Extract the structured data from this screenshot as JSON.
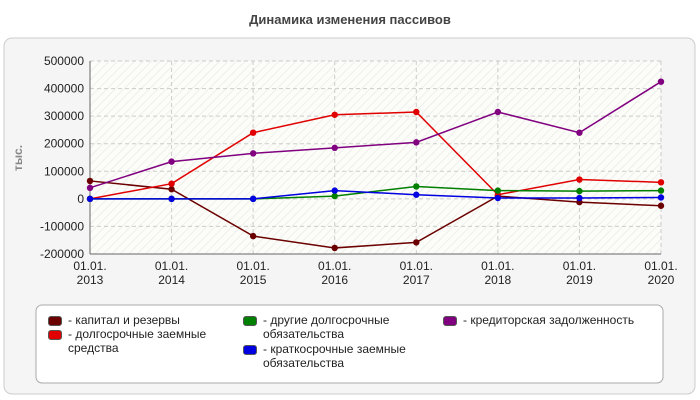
{
  "chart_data": {
    "type": "line",
    "title": "Динамика изменения пассивов",
    "y_label": "тыс.",
    "categories": [
      "01.01. 2013",
      "01.01. 2014",
      "01.01. 2015",
      "01.01. 2016",
      "01.01. 2017",
      "01.01. 2018",
      "01.01. 2019",
      "01.01. 2020"
    ],
    "series": [
      {
        "name": "- капитал и резервы",
        "color": "#6b0000",
        "values": [
          65000,
          35000,
          -135000,
          -178000,
          -158000,
          10000,
          -12000,
          -25000
        ]
      },
      {
        "name": "- долгосрочные заемные средства",
        "color": "#e00000",
        "values": [
          0,
          55000,
          240000,
          305000,
          315000,
          15000,
          70000,
          60000
        ]
      },
      {
        "name": "- другие долгосрочные обязательства",
        "color": "#008000",
        "values": [
          0,
          0,
          0,
          10000,
          45000,
          30000,
          28000,
          30000
        ]
      },
      {
        "name": "- краткосрочные заемные обязательства",
        "color": "#0000e0",
        "values": [
          0,
          0,
          0,
          30000,
          15000,
          3000,
          3000,
          5000
        ]
      },
      {
        "name": "- кредиторская задолженность",
        "color": "#800080",
        "values": [
          40000,
          135000,
          165000,
          185000,
          205000,
          315000,
          240000,
          425000
        ]
      }
    ],
    "ylim": [
      -200000,
      500000
    ],
    "yticks": [
      -200000,
      -100000,
      0,
      100000,
      200000,
      300000,
      400000,
      500000
    ],
    "grid": true
  }
}
